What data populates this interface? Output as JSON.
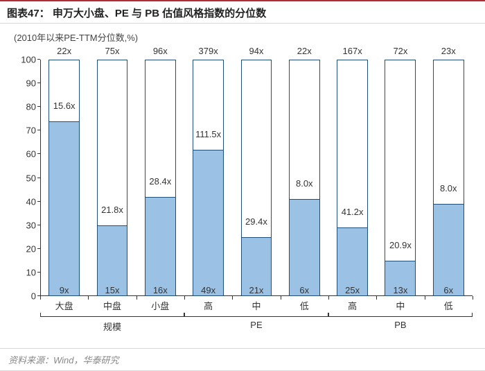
{
  "title": "图表47： 申万大小盘、PE 与 PB 估值风格指数的分位数",
  "subtitle": "(2010年以来PE-TTM分位数,%)",
  "source": "资料来源：Wind，华泰研究",
  "chart": {
    "type": "bar",
    "ylim": [
      0,
      100
    ],
    "ytick_step": 10,
    "colors": {
      "bar_fill": "#9bc2e4",
      "bar_border": "#1f4e79",
      "axis": "#333333",
      "text": "#333333",
      "title_accent": "#b02e33",
      "background": "#ffffff"
    },
    "font": {
      "label_size": 13,
      "title_size": 15,
      "title_weight": "bold"
    },
    "bars": [
      {
        "cat": "大盘",
        "group": "规模",
        "value": 74,
        "top": "22x",
        "mid": "15.6x",
        "bottom": "9x"
      },
      {
        "cat": "中盘",
        "group": "规模",
        "value": 30,
        "top": "75x",
        "mid": "21.8x",
        "bottom": "15x"
      },
      {
        "cat": "小盘",
        "group": "规模",
        "value": 42,
        "top": "96x",
        "mid": "28.4x",
        "bottom": "16x"
      },
      {
        "cat": "高",
        "group": "PE",
        "value": 62,
        "top": "379x",
        "mid": "111.5x",
        "bottom": "49x"
      },
      {
        "cat": "中",
        "group": "PE",
        "value": 25,
        "top": "94x",
        "mid": "29.4x",
        "bottom": "21x"
      },
      {
        "cat": "低",
        "group": "PE",
        "value": 41,
        "top": "22x",
        "mid": "8.0x",
        "bottom": "6x"
      },
      {
        "cat": "高",
        "group": "PB",
        "value": 29,
        "top": "167x",
        "mid": "41.2x",
        "bottom": "25x"
      },
      {
        "cat": "中",
        "group": "PB",
        "value": 15,
        "top": "72x",
        "mid": "20.9x",
        "bottom": "13x"
      },
      {
        "cat": "低",
        "group": "PB",
        "value": 39,
        "top": "23x",
        "mid": "8.0x",
        "bottom": "6x"
      }
    ],
    "groups": [
      {
        "label": "规模",
        "from": 0,
        "to": 2
      },
      {
        "label": "PE",
        "from": 3,
        "to": 5
      },
      {
        "label": "PB",
        "from": 6,
        "to": 8
      }
    ],
    "bar_width_pct": 7.2,
    "slot_width_pct": 11.11
  }
}
